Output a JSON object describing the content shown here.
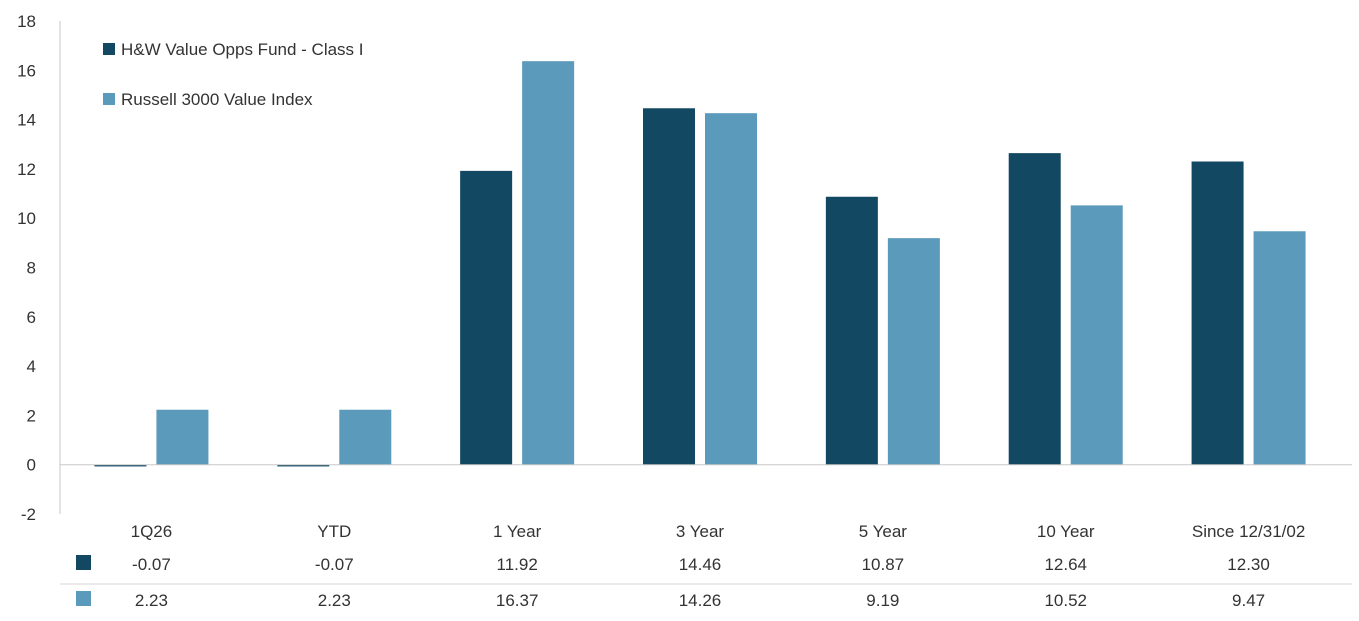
{
  "chart_data": {
    "type": "bar",
    "categories": [
      "1Q26",
      "YTD",
      "1 Year",
      "3 Year",
      "5 Year",
      "10 Year",
      "Since 12/31/02"
    ],
    "series": [
      {
        "name": "H&W Value Opps Fund - Class I",
        "color": "#134862",
        "values": [
          -0.07,
          -0.07,
          11.92,
          14.46,
          10.87,
          12.64,
          12.3
        ]
      },
      {
        "name": "Russell 3000 Value Index",
        "color": "#5b9aba",
        "values": [
          2.23,
          2.23,
          16.37,
          14.26,
          9.19,
          10.52,
          9.47
        ]
      }
    ],
    "table": [
      [
        "-0.07",
        "-0.07",
        "11.92",
        "14.46",
        "10.87",
        "12.64",
        "12.30"
      ],
      [
        "2.23",
        "2.23",
        "16.37",
        "14.26",
        "9.19",
        "10.52",
        "9.47"
      ]
    ],
    "yticks": [
      "18",
      "16",
      "14",
      "12",
      "10",
      "8",
      "6",
      "4",
      "2",
      "0",
      "-2"
    ],
    "ylim": [
      -2,
      18
    ],
    "grid": false,
    "legend": "top-left"
  }
}
